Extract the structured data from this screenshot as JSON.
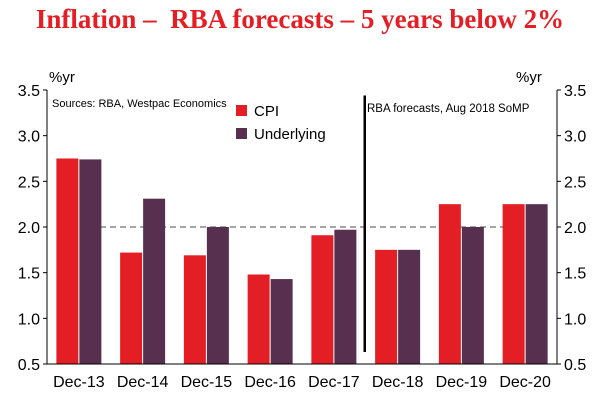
{
  "chart_data": {
    "type": "bar",
    "title": "Inflation –  RBA forecasts – 5 years below 2%",
    "ylabel_left": "%yr",
    "ylabel_right": "%yr",
    "ylim": [
      0.5,
      3.5
    ],
    "yticks": [
      0.5,
      1.0,
      1.5,
      2.0,
      2.5,
      3.0,
      3.5
    ],
    "ytick_labels": [
      "0.5",
      "1.0",
      "1.5",
      "2.0",
      "2.5",
      "3.0",
      "3.5"
    ],
    "categories": [
      "Dec-13",
      "Dec-14",
      "Dec-15",
      "Dec-16",
      "Dec-17",
      "Dec-18",
      "Dec-19",
      "Dec-20"
    ],
    "series": [
      {
        "name": "CPI",
        "color": "#e31e24",
        "values": [
          2.75,
          1.72,
          1.69,
          1.48,
          1.91,
          1.75,
          2.25,
          2.25
        ]
      },
      {
        "name": "Underlying",
        "color": "#58304f",
        "values": [
          2.74,
          2.31,
          2.0,
          1.43,
          1.97,
          1.75,
          2.0,
          2.25
        ]
      }
    ],
    "reference_line": {
      "value": 2.0,
      "style": "dashed",
      "color": "#a6a6a6"
    },
    "forecast_divider_after_category": "Dec-17",
    "annotations": {
      "sources": "Sources: RBA, Westpac Economics",
      "forecast_label": "RBA forecasts, Aug 2018 SoMP"
    },
    "legend_position": "top-center"
  }
}
